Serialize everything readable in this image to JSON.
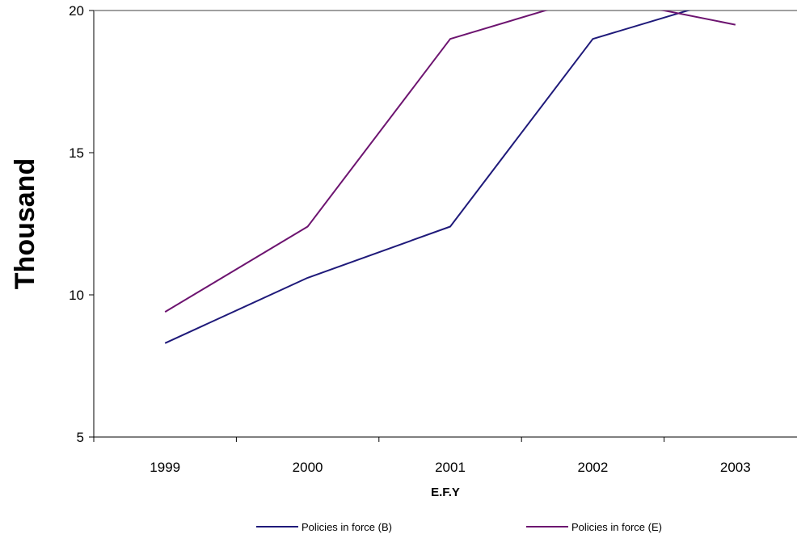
{
  "chart_data": {
    "type": "line",
    "xlabel": "E.F.Y",
    "ylabel": "Thousand",
    "categories": [
      "1999",
      "2000",
      "2001",
      "2002",
      "2003"
    ],
    "ylim": [
      5,
      20
    ],
    "yticks": [
      "5",
      "10",
      "15",
      "20"
    ],
    "grid": false,
    "legend_position": "bottom",
    "series": [
      {
        "name": "Policies in force (B)",
        "color": "#1f1a7a",
        "values": [
          8.3,
          10.6,
          12.4,
          19.0,
          20.5
        ]
      },
      {
        "name": "Policies in force (E)",
        "color": "#6d1470",
        "values": [
          9.4,
          12.4,
          19.0,
          20.5,
          19.5
        ]
      }
    ]
  }
}
